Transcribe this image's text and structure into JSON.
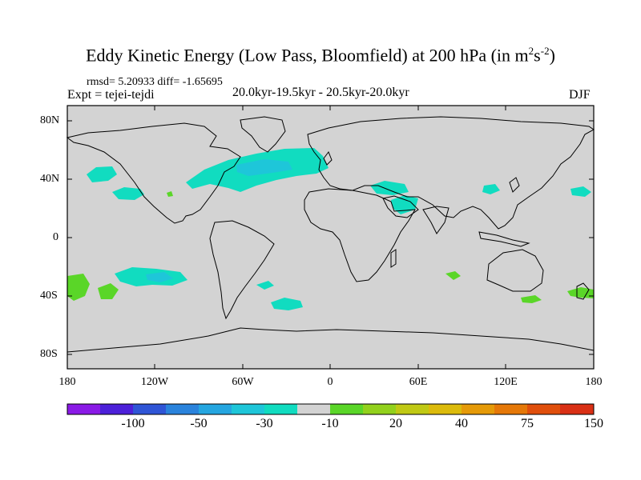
{
  "title": {
    "main": "Eddy Kinetic Energy (Low Pass, Bloomfield) at 200 hPa (in m",
    "sup1": "2",
    "mid": "s",
    "sup2": "-2",
    "close": ")"
  },
  "stats_line": "rmsd= 5.20933 diff= -1.65695",
  "experiment": "Expt = tejei-tejdi",
  "period": "20.0kyr-19.5kyr - 20.5kyr-20.0kyr",
  "season": "DJF",
  "map": {
    "lat_labels": [
      "80N",
      "40N",
      "0",
      "40S",
      "80S"
    ],
    "lon_labels": [
      "180",
      "120W",
      "60W",
      "0",
      "60E",
      "120E",
      "180"
    ],
    "ocean_fill": "#d3d3d3",
    "coast_color": "#000000"
  },
  "colorbar": {
    "colors": [
      "#8a1ae6",
      "#4c20d9",
      "#2f55d6",
      "#2a83dc",
      "#25a6e0",
      "#1ec6d9",
      "#11dcc0",
      "#d3d3d3",
      "#5ad628",
      "#92d11c",
      "#c0c914",
      "#dcbb0c",
      "#e59a08",
      "#e57808",
      "#e04f0c",
      "#d93015"
    ],
    "labels": [
      "-100",
      "-50",
      "-30",
      "-10",
      "20",
      "40",
      "75",
      "150"
    ]
  }
}
